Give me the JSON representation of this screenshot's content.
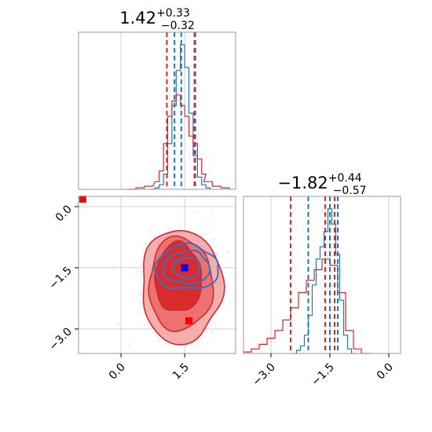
{
  "chart_data": [
    {
      "type": "histogram",
      "panel": "x-marginal",
      "title": {
        "value": "1.42",
        "plus": "+0.33",
        "minus": "−0.32"
      },
      "xlim": [
        -1.0,
        2.7
      ],
      "vlines": {
        "blue": [
          1.26,
          1.42,
          1.75
        ],
        "red": [
          1.08,
          1.73
        ]
      },
      "series": [
        {
          "color": "#1f77b4",
          "bins": [
            {
              "x": 0.75,
              "h": 0.0
            },
            {
              "x": 0.85,
              "h": 0.01
            },
            {
              "x": 0.95,
              "h": 0.03
            },
            {
              "x": 1.05,
              "h": 0.1
            },
            {
              "x": 1.15,
              "h": 0.3
            },
            {
              "x": 1.25,
              "h": 0.55
            },
            {
              "x": 1.35,
              "h": 0.78
            },
            {
              "x": 1.45,
              "h": 0.95
            },
            {
              "x": 1.55,
              "h": 0.8
            },
            {
              "x": 1.65,
              "h": 0.5
            },
            {
              "x": 1.75,
              "h": 0.22
            },
            {
              "x": 1.85,
              "h": 0.08
            },
            {
              "x": 1.95,
              "h": 0.03
            },
            {
              "x": 2.05,
              "h": 0.01
            }
          ]
        },
        {
          "color": "#d62728",
          "bins": [
            {
              "x": 0.25,
              "h": 0.0
            },
            {
              "x": 0.45,
              "h": 0.01
            },
            {
              "x": 0.65,
              "h": 0.02
            },
            {
              "x": 0.85,
              "h": 0.05
            },
            {
              "x": 0.95,
              "h": 0.12
            },
            {
              "x": 1.05,
              "h": 0.3
            },
            {
              "x": 1.15,
              "h": 0.48
            },
            {
              "x": 1.25,
              "h": 0.58
            },
            {
              "x": 1.35,
              "h": 0.62
            },
            {
              "x": 1.45,
              "h": 0.55
            },
            {
              "x": 1.55,
              "h": 0.48
            },
            {
              "x": 1.65,
              "h": 0.35
            },
            {
              "x": 1.75,
              "h": 0.3
            },
            {
              "x": 1.85,
              "h": 0.2
            },
            {
              "x": 1.95,
              "h": 0.1
            },
            {
              "x": 2.05,
              "h": 0.05
            },
            {
              "x": 2.25,
              "h": 0.02
            },
            {
              "x": 2.45,
              "h": 0.01
            }
          ]
        }
      ]
    },
    {
      "type": "histogram",
      "panel": "y-marginal",
      "title": {
        "value": "−1.82",
        "plus": "+0.44",
        "minus": "−0.57"
      },
      "xlim": [
        -3.7,
        0.3
      ],
      "xticks": [
        "−3.0",
        "−1.5",
        "0.0"
      ],
      "vlines": {
        "blue": [
          -2.05,
          -1.5,
          -1.3
        ],
        "red": [
          -2.5,
          -1.62,
          -1.38
        ]
      },
      "series": [
        {
          "color": "#1f77b4",
          "bins": [
            {
              "x": -2.4,
              "h": 0.0
            },
            {
              "x": -2.3,
              "h": 0.02
            },
            {
              "x": -2.2,
              "h": 0.05
            },
            {
              "x": -2.1,
              "h": 0.12
            },
            {
              "x": -2.0,
              "h": 0.25
            },
            {
              "x": -1.9,
              "h": 0.45
            },
            {
              "x": -1.8,
              "h": 0.62
            },
            {
              "x": -1.7,
              "h": 0.7
            },
            {
              "x": -1.6,
              "h": 0.8
            },
            {
              "x": -1.5,
              "h": 0.95
            },
            {
              "x": -1.4,
              "h": 0.85
            },
            {
              "x": -1.3,
              "h": 0.65
            },
            {
              "x": -1.2,
              "h": 0.35
            },
            {
              "x": -1.1,
              "h": 0.12
            },
            {
              "x": -1.0,
              "h": 0.03
            },
            {
              "x": -0.9,
              "h": 0.0
            }
          ]
        },
        {
          "color": "#d62728",
          "bins": [
            {
              "x": -3.6,
              "h": 0.01
            },
            {
              "x": -3.4,
              "h": 0.03
            },
            {
              "x": -3.2,
              "h": 0.06
            },
            {
              "x": -3.0,
              "h": 0.1
            },
            {
              "x": -2.8,
              "h": 0.15
            },
            {
              "x": -2.6,
              "h": 0.22
            },
            {
              "x": -2.4,
              "h": 0.3
            },
            {
              "x": -2.2,
              "h": 0.4
            },
            {
              "x": -2.0,
              "h": 0.48
            },
            {
              "x": -1.8,
              "h": 0.55
            },
            {
              "x": -1.6,
              "h": 0.62
            },
            {
              "x": -1.4,
              "h": 0.58
            },
            {
              "x": -1.2,
              "h": 0.4
            },
            {
              "x": -1.0,
              "h": 0.15
            },
            {
              "x": -0.8,
              "h": 0.03
            },
            {
              "x": -0.6,
              "h": 0.0
            }
          ]
        }
      ]
    },
    {
      "type": "scatter",
      "panel": "joint",
      "xlim": [
        -1.0,
        2.7
      ],
      "ylim": [
        -3.6,
        0.25
      ],
      "xticks": [
        "0.0",
        "1.5"
      ],
      "yticks": [
        "0.0",
        "−1.5",
        "−3.0"
      ],
      "grid": true,
      "red_contours": [
        {
          "cx": 1.42,
          "cy": -1.95,
          "rx": 0.95,
          "ry": 1.4,
          "fill": "#f4a9a9"
        },
        {
          "cx": 1.4,
          "cy": -1.9,
          "rx": 0.75,
          "ry": 1.15,
          "fill": "#eb6f6f"
        },
        {
          "cx": 1.35,
          "cy": -1.75,
          "rx": 0.55,
          "ry": 0.85,
          "fill": "#d62728"
        }
      ],
      "blue_contours": [
        {
          "cx": 1.55,
          "cy": -1.5,
          "rx": 0.75,
          "ry": 0.55
        },
        {
          "cx": 1.55,
          "cy": -1.5,
          "rx": 0.55,
          "ry": 0.4
        },
        {
          "cx": 1.55,
          "cy": -1.5,
          "rx": 0.32,
          "ry": 0.25
        }
      ],
      "markers": [
        {
          "name": "blue-marker",
          "x": 1.5,
          "y": -1.5,
          "color": "#0000ff"
        },
        {
          "name": "red-marker-main",
          "x": 1.6,
          "y": -2.8,
          "color": "#ff0000"
        },
        {
          "name": "red-marker-corner",
          "x": -0.9,
          "y": 0.18,
          "color": "#ff0000"
        }
      ]
    }
  ]
}
